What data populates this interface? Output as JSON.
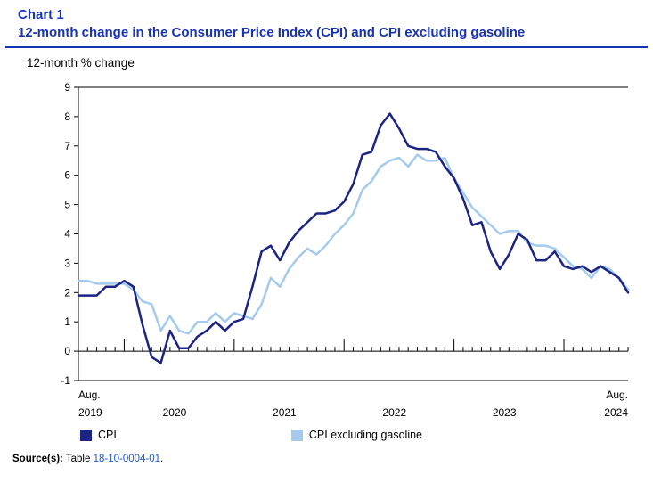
{
  "header": {
    "chart_label": "Chart 1",
    "title": "12-month change in the Consumer Price Index (CPI) and CPI excluding gasoline"
  },
  "axis_title": "12-month % change",
  "legend": {
    "items": [
      {
        "label": "CPI",
        "color": "#1b2383"
      },
      {
        "label": "CPI excluding gasoline",
        "color": "#a4cbed"
      }
    ]
  },
  "source": {
    "label": "Source(s):",
    "pre_link": "Table",
    "link": "18-10-0004-01",
    "post_link": "."
  },
  "colors": {
    "title_blue": "#1733b5",
    "rule_blue": "#1733b5",
    "link_blue": "#2255cc",
    "cpi_line": "#1b2383",
    "cpi_ex_gas_line": "#a4cbed",
    "axis": "#000000"
  },
  "chart_data": {
    "type": "line",
    "title": "12-month change in the Consumer Price Index (CPI) and CPI excluding gasoline",
    "ylabel": "12-month % change",
    "ylim": [
      -1,
      9
    ],
    "ytick_step": 1,
    "grid": false,
    "legend_position": "bottom",
    "x_first_label": [
      "Aug.",
      "2019"
    ],
    "x_last_label": [
      "Aug.",
      "2024"
    ],
    "x_tick_labels": [
      "Aug. 2019",
      "2020",
      "2021",
      "2022",
      "2023",
      "Aug. 2024"
    ],
    "x": [
      "2019-08",
      "2019-09",
      "2019-10",
      "2019-11",
      "2019-12",
      "2020-01",
      "2020-02",
      "2020-03",
      "2020-04",
      "2020-05",
      "2020-06",
      "2020-07",
      "2020-08",
      "2020-09",
      "2020-10",
      "2020-11",
      "2020-12",
      "2021-01",
      "2021-02",
      "2021-03",
      "2021-04",
      "2021-05",
      "2021-06",
      "2021-07",
      "2021-08",
      "2021-09",
      "2021-10",
      "2021-11",
      "2021-12",
      "2022-01",
      "2022-02",
      "2022-03",
      "2022-04",
      "2022-05",
      "2022-06",
      "2022-07",
      "2022-08",
      "2022-09",
      "2022-10",
      "2022-11",
      "2022-12",
      "2023-01",
      "2023-02",
      "2023-03",
      "2023-04",
      "2023-05",
      "2023-06",
      "2023-07",
      "2023-08",
      "2023-09",
      "2023-10",
      "2023-11",
      "2023-12",
      "2024-01",
      "2024-02",
      "2024-03",
      "2024-04",
      "2024-05",
      "2024-06",
      "2024-07",
      "2024-08"
    ],
    "series": [
      {
        "name": "CPI",
        "color": "#1b2383",
        "values": [
          1.9,
          1.9,
          1.9,
          2.2,
          2.2,
          2.4,
          2.2,
          0.9,
          -0.2,
          -0.4,
          0.7,
          0.1,
          0.1,
          0.5,
          0.7,
          1.0,
          0.7,
          1.0,
          1.1,
          2.2,
          3.4,
          3.6,
          3.1,
          3.7,
          4.1,
          4.4,
          4.7,
          4.7,
          4.8,
          5.1,
          5.7,
          6.7,
          6.8,
          7.7,
          8.1,
          7.6,
          7.0,
          6.9,
          6.9,
          6.8,
          6.3,
          5.9,
          5.2,
          4.3,
          4.4,
          3.4,
          2.8,
          3.3,
          4.0,
          3.8,
          3.1,
          3.1,
          3.4,
          2.9,
          2.8,
          2.9,
          2.7,
          2.9,
          2.7,
          2.5,
          2.0
        ]
      },
      {
        "name": "CPI excluding gasoline",
        "color": "#a4cbed",
        "values": [
          2.4,
          2.4,
          2.3,
          2.3,
          2.3,
          2.3,
          2.1,
          1.7,
          1.6,
          0.7,
          1.2,
          0.7,
          0.6,
          1.0,
          1.0,
          1.3,
          1.0,
          1.3,
          1.2,
          1.1,
          1.6,
          2.5,
          2.2,
          2.8,
          3.2,
          3.5,
          3.3,
          3.6,
          4.0,
          4.3,
          4.7,
          5.5,
          5.8,
          6.3,
          6.5,
          6.6,
          6.3,
          6.7,
          6.5,
          6.5,
          6.6,
          5.9,
          5.4,
          4.9,
          4.6,
          4.3,
          4.0,
          4.1,
          4.1,
          3.7,
          3.6,
          3.6,
          3.5,
          3.2,
          2.9,
          2.8,
          2.5,
          2.9,
          2.8,
          2.5,
          2.1
        ]
      }
    ]
  }
}
